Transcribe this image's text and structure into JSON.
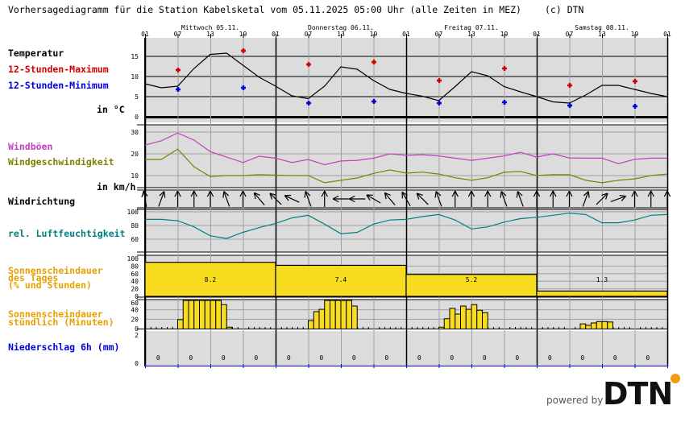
{
  "header": {
    "title": "Vorhersagediagramm für die Station Kabelsketal vom 05.11.2025 05:00 Uhr (alle Zeiten in MEZ)",
    "copyright": "(c) DTN",
    "days": [
      "Mittwoch 05.11.",
      "Donnerstag 06.11.",
      "Freitag 07.11.",
      "Samstag 08.11."
    ],
    "hour_ticks": [
      "01",
      "07",
      "13",
      "19",
      "01",
      "07",
      "13",
      "19",
      "01",
      "07",
      "13",
      "19",
      "01",
      "07",
      "13",
      "19",
      "01"
    ]
  },
  "labels": {
    "temperature": "Temperatur",
    "max12": "12-Stunden-Maximum",
    "min12": "12-Stunden-Minimum",
    "temp_unit": "in °C",
    "gusts": "Windböen",
    "wind_speed": "Windgeschwindigkeit",
    "wind_unit": "in km/h",
    "wind_dir": "Windrichtung",
    "humidity": "rel. Luftfeuchtigkeit",
    "sun_daily": [
      "Sonnenscheindauer",
      "des Tages",
      "(% und Stunden)"
    ],
    "sun_hourly": [
      "Sonnenscheindauer",
      "stündlich (Minuten)"
    ],
    "precip": "Niederschlag 6h (mm)"
  },
  "colors": {
    "max": "#d00000",
    "min": "#0000e0",
    "gusts": "#c040c0",
    "wind": "#808000",
    "humidity": "#008080",
    "sun": "#f8dc20",
    "sun_label": "#e8a000",
    "precip": "#0000e0",
    "panel": "#dcdcdc",
    "grid": "#a0a0a0"
  },
  "chart_data": {
    "type": "line",
    "times": [
      "05.11. 01:00",
      "05.11. 04:00",
      "05.11. 07:00",
      "05.11. 10:00",
      "05.11. 13:00",
      "05.11. 16:00",
      "05.11. 19:00",
      "05.11. 22:00",
      "06.11. 01:00",
      "06.11. 04:00",
      "06.11. 07:00",
      "06.11. 10:00",
      "06.11. 13:00",
      "06.11. 16:00",
      "06.11. 19:00",
      "06.11. 22:00",
      "07.11. 01:00",
      "07.11. 04:00",
      "07.11. 07:00",
      "07.11. 10:00",
      "07.11. 13:00",
      "07.11. 16:00",
      "07.11. 19:00",
      "07.11. 22:00",
      "08.11. 01:00",
      "08.11. 04:00",
      "08.11. 07:00",
      "08.11. 10:00",
      "08.11. 13:00",
      "08.11. 16:00",
      "08.11. 19:00",
      "08.11. 22:00",
      "09.11. 01:00"
    ],
    "temperature": {
      "yticks": [
        "0",
        "5",
        "10",
        "15"
      ],
      "ylim": [
        0,
        20
      ],
      "values": [
        8.2,
        7.2,
        7.6,
        12,
        15.5,
        15.8,
        12.8,
        9.8,
        7.6,
        5.2,
        4.5,
        7.6,
        12.4,
        11.8,
        9,
        6.8,
        5.8,
        5.1,
        4,
        7.5,
        11.2,
        10.2,
        7.5,
        6.2,
        5,
        3.7,
        3.4,
        5.4,
        7.8,
        7.8,
        6.8,
        5.8,
        5
      ],
      "max12": [
        {
          "time": "05.11. 07:00",
          "value": 11.6
        },
        {
          "time": "05.11. 19:00",
          "value": 16.4
        },
        {
          "time": "06.11. 07:00",
          "value": 13
        },
        {
          "time": "06.11. 19:00",
          "value": 13.6
        },
        {
          "time": "07.11. 07:00",
          "value": 9
        },
        {
          "time": "07.11. 19:00",
          "value": 12
        },
        {
          "time": "08.11. 07:00",
          "value": 7.8
        },
        {
          "time": "08.11. 19:00",
          "value": 8.8
        }
      ],
      "min12": [
        {
          "time": "05.11. 07:00",
          "value": 6.8
        },
        {
          "time": "05.11. 19:00",
          "value": 7.2
        },
        {
          "time": "06.11. 07:00",
          "value": 3.4
        },
        {
          "time": "06.11. 19:00",
          "value": 3.8
        },
        {
          "time": "07.11. 07:00",
          "value": 3.4
        },
        {
          "time": "07.11. 19:00",
          "value": 3.6
        },
        {
          "time": "08.11. 07:00",
          "value": 2.8
        },
        {
          "time": "08.11. 19:00",
          "value": 2.6
        }
      ]
    },
    "wind": {
      "yticks": [
        "10",
        "20",
        "30"
      ],
      "gusts": [
        24,
        26,
        29.6,
        26.3,
        21,
        18.5,
        16,
        18.9,
        18,
        16,
        17.4,
        15,
        16.7,
        17,
        18,
        20,
        19.3,
        19.6,
        19,
        18,
        17,
        18,
        19,
        20.7,
        18.5,
        20,
        18.1,
        18,
        18,
        15.5,
        17.5,
        18,
        18
      ],
      "speed": [
        17.4,
        17.4,
        22.2,
        14,
        9.5,
        10,
        10,
        10.4,
        10.2,
        10,
        10,
        6.7,
        7.8,
        8.9,
        11,
        12.6,
        11.1,
        11.6,
        10.7,
        9,
        7.8,
        9,
        11.5,
        11.9,
        10,
        10.4,
        10.4,
        7.8,
        6.7,
        7.8,
        8.5,
        10,
        10.7
      ]
    },
    "wind_direction_arrow_heading_deg": [
      350,
      20,
      0,
      0,
      0,
      340,
      0,
      320,
      315,
      295,
      340,
      0,
      270,
      270,
      300,
      320,
      330,
      315,
      340,
      0,
      0,
      0,
      340,
      340,
      0,
      0,
      0,
      20,
      45,
      70,
      0,
      0,
      0
    ],
    "humidity": {
      "yticks": [
        "60",
        "80",
        "100"
      ],
      "values": [
        89,
        89,
        87,
        78,
        65,
        61,
        70,
        77,
        83,
        91,
        95,
        82,
        68,
        70,
        82,
        88,
        89,
        93,
        96,
        88,
        75,
        78,
        85,
        90,
        92,
        95,
        98,
        96,
        84,
        84,
        88,
        95,
        96
      ]
    },
    "sunshine_daily": {
      "yticks": [
        "0",
        "20",
        "40",
        "60",
        "80",
        "100"
      ],
      "days": [
        {
          "percent": 90,
          "hours": "8.2"
        },
        {
          "percent": 82,
          "hours": "7.4"
        },
        {
          "percent": 58,
          "hours": "5.2"
        },
        {
          "percent": 14,
          "hours": "1.3"
        }
      ]
    },
    "sunshine_hourly": {
      "yticks": [
        "0",
        "20",
        "40",
        "60"
      ],
      "bars": [
        {
          "time": "05.11. 07:00",
          "minutes": 19
        },
        {
          "time": "05.11. 08:00",
          "minutes": 60
        },
        {
          "time": "05.11. 09:00",
          "minutes": 60
        },
        {
          "time": "05.11. 10:00",
          "minutes": 60
        },
        {
          "time": "05.11. 11:00",
          "minutes": 60
        },
        {
          "time": "05.11. 12:00",
          "minutes": 60
        },
        {
          "time": "05.11. 13:00",
          "minutes": 60
        },
        {
          "time": "05.11. 14:00",
          "minutes": 60
        },
        {
          "time": "05.11. 15:00",
          "minutes": 51
        },
        {
          "time": "05.11. 16:00",
          "minutes": 3
        },
        {
          "time": "06.11. 07:00",
          "minutes": 17
        },
        {
          "time": "06.11. 08:00",
          "minutes": 36
        },
        {
          "time": "06.11. 09:00",
          "minutes": 41
        },
        {
          "time": "06.11. 10:00",
          "minutes": 60
        },
        {
          "time": "06.11. 11:00",
          "minutes": 60
        },
        {
          "time": "06.11. 12:00",
          "minutes": 60
        },
        {
          "time": "06.11. 13:00",
          "minutes": 60
        },
        {
          "time": "06.11. 14:00",
          "minutes": 60
        },
        {
          "time": "06.11. 15:00",
          "minutes": 48
        },
        {
          "time": "07.11. 07:00",
          "minutes": 3
        },
        {
          "time": "07.11. 08:00",
          "minutes": 21
        },
        {
          "time": "07.11. 09:00",
          "minutes": 43
        },
        {
          "time": "07.11. 10:00",
          "minutes": 31
        },
        {
          "time": "07.11. 11:00",
          "minutes": 48
        },
        {
          "time": "07.11. 12:00",
          "minutes": 41
        },
        {
          "time": "07.11. 13:00",
          "minutes": 51
        },
        {
          "time": "07.11. 14:00",
          "minutes": 39
        },
        {
          "time": "07.11. 15:00",
          "minutes": 34
        },
        {
          "time": "08.11. 09:00",
          "minutes": 10
        },
        {
          "time": "08.11. 10:00",
          "minutes": 7
        },
        {
          "time": "08.11. 11:00",
          "minutes": 12
        },
        {
          "time": "08.11. 12:00",
          "minutes": 15
        },
        {
          "time": "08.11. 13:00",
          "minutes": 15
        },
        {
          "time": "08.11. 14:00",
          "minutes": 14
        }
      ]
    },
    "precipitation_6h": {
      "yticks": [
        "0",
        "2"
      ],
      "values": [
        "0",
        "0",
        "0",
        "0",
        "0",
        "0",
        "0",
        "0",
        "0",
        "0",
        "0",
        "0",
        "0",
        "0",
        "0",
        "0"
      ]
    }
  },
  "logo": {
    "powered_by": "powered by",
    "brand": "DTN"
  }
}
